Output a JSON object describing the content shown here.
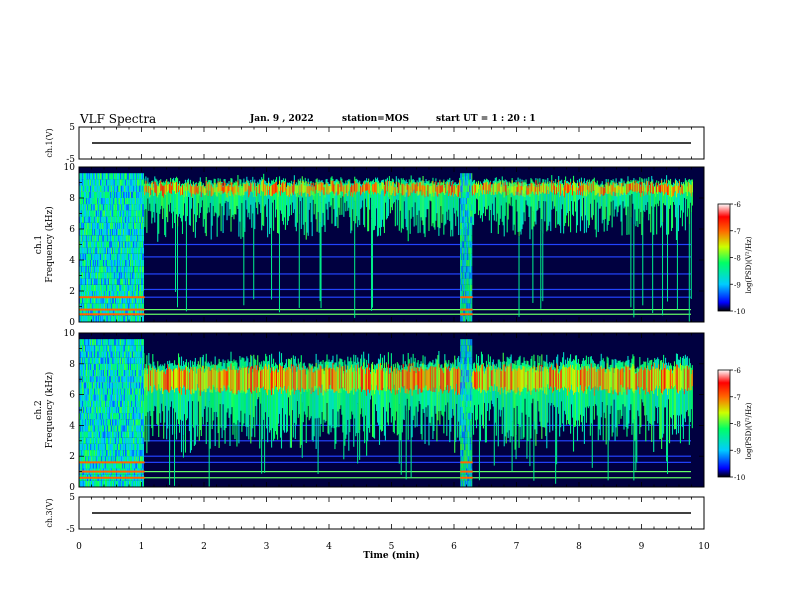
{
  "header": {
    "title": "VLF Spectra",
    "date": "Jan. 9 , 2022",
    "station": "station=MOS",
    "start": "start UT = 1 : 20 : 1"
  },
  "colors": {
    "background": "#000040",
    "trace": "#000000"
  },
  "chart_data": [
    {
      "type": "line",
      "name": "ch1-voltage",
      "ylabel": "ch.1(V)",
      "ylim": [
        -5,
        5
      ],
      "yticks": [
        "5",
        "-5"
      ],
      "x": [
        0,
        10
      ],
      "values": [
        0,
        0
      ]
    },
    {
      "type": "heatmap",
      "name": "ch1-spectrogram",
      "ylabel": "ch.1 Frequency (kHz)",
      "xlim": [
        0,
        10
      ],
      "ylim": [
        0,
        10
      ],
      "yticks": [
        "0",
        "2",
        "4",
        "6",
        "8",
        "10"
      ],
      "colorbar": {
        "label": "log(PSD)(V²/Hz)",
        "range": [
          -10,
          -6
        ],
        "ticks": [
          "-6",
          "-7",
          "-8",
          "-9",
          "-10"
        ]
      },
      "band_center_khz": 8.6,
      "band_halfwidth_khz": 0.6,
      "broadband_segments_min": [
        [
          0,
          1.05
        ],
        [
          6.1,
          6.3
        ]
      ],
      "horizontal_lines_khz": [
        0.5,
        0.8,
        1.6,
        2.1,
        3.1,
        4.2,
        5.0
      ]
    },
    {
      "type": "heatmap",
      "name": "ch2-spectrogram",
      "ylabel": "ch.2 Frequency (kHz)",
      "xlim": [
        0,
        10
      ],
      "ylim": [
        0,
        10
      ],
      "yticks": [
        "0",
        "2",
        "4",
        "6",
        "8",
        "10"
      ],
      "colorbar": {
        "label": "log(PSD)(V²/Hz)",
        "range": [
          -10,
          -6
        ],
        "ticks": [
          "-6",
          "-7",
          "-8",
          "-9",
          "-10"
        ]
      },
      "band_center_khz": 7.0,
      "band_halfwidth_khz": 1.4,
      "broadband_segments_min": [
        [
          0,
          1.05
        ],
        [
          6.1,
          6.3
        ]
      ],
      "horizontal_lines_khz": [
        0.6,
        1.0,
        1.6,
        2.0,
        3.0,
        4.0
      ]
    },
    {
      "type": "line",
      "name": "ch3-voltage",
      "ylabel": "ch.3(V)",
      "ylim": [
        -5,
        5
      ],
      "yticks": [
        "5",
        "-5"
      ],
      "x": [
        0,
        10
      ],
      "values": [
        0,
        0
      ]
    }
  ],
  "xaxis": {
    "label": "Time (min)",
    "ticks": [
      "0",
      "1",
      "2",
      "3",
      "4",
      "5",
      "6",
      "7",
      "8",
      "9",
      "10"
    ]
  }
}
